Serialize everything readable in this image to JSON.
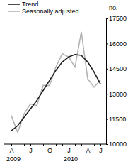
{
  "chart_data": {
    "type": "line",
    "y_label": "no.",
    "categories": [
      "A",
      null,
      null,
      "J",
      null,
      null,
      "O",
      null,
      null,
      "J",
      null,
      null,
      "A",
      null,
      "J"
    ],
    "annotations": [
      {
        "text": "2009",
        "x": 0
      },
      {
        "text": "2010",
        "x": 9
      }
    ],
    "series": [
      {
        "name": "Trend",
        "color": "#231f20",
        "values": [
          10800,
          11100,
          11600,
          12100,
          12600,
          13200,
          13800,
          14400,
          14900,
          15200,
          15350,
          15300,
          14900,
          14300,
          13600
        ]
      },
      {
        "name": "Seasonally adjusted",
        "color": "#b3b3b3",
        "values": [
          11700,
          10700,
          11800,
          12400,
          12300,
          13500,
          13500,
          14600,
          15400,
          15200,
          14600,
          16700,
          13900,
          13400,
          13800
        ]
      }
    ],
    "ylim": [
      10000,
      17500
    ],
    "yticks": [
      10000,
      11500,
      13000,
      14500,
      16000,
      17500
    ],
    "legend": "top-left",
    "grid": false
  }
}
